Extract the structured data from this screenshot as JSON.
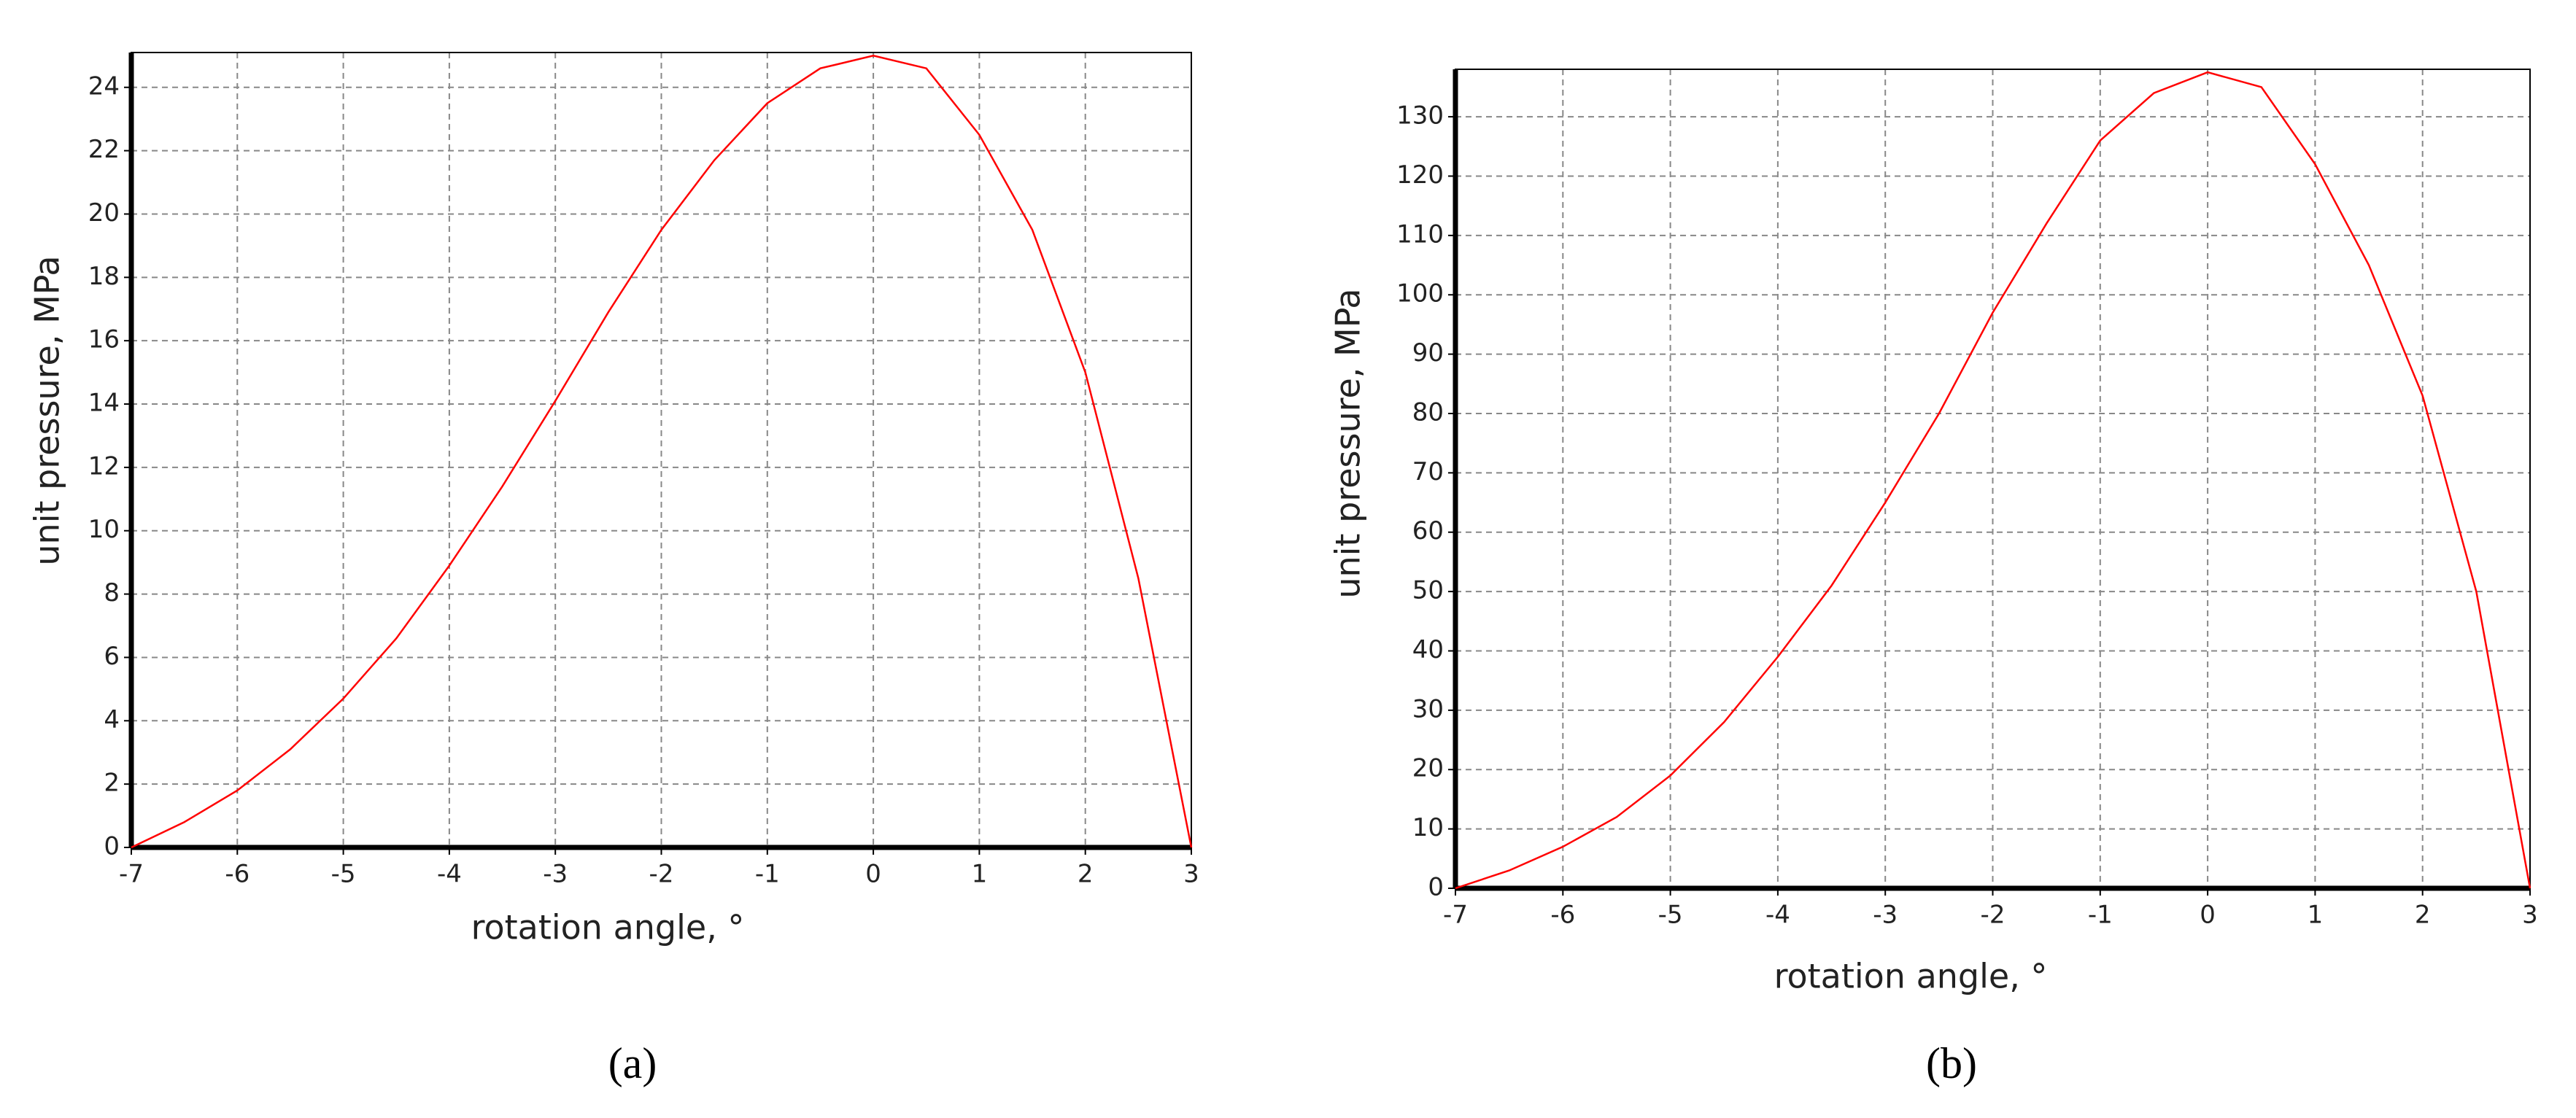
{
  "chart_data": [
    {
      "type": "line",
      "caption": "(a)",
      "xlabel": "rotation angle, °",
      "ylabel": "unit pressure, MPa",
      "x": [
        -7,
        -6.5,
        -6,
        -5.5,
        -5,
        -4.5,
        -4,
        -3.5,
        -3,
        -2.5,
        -2,
        -1.5,
        -1,
        -0.5,
        0,
        0.5,
        1,
        1.5,
        2,
        2.5,
        3
      ],
      "values": [
        0,
        0.8,
        1.8,
        3.1,
        4.7,
        6.6,
        8.9,
        11.4,
        14.1,
        16.9,
        19.5,
        21.7,
        23.5,
        24.6,
        25,
        24.6,
        22.5,
        19.5,
        15,
        8.5,
        0
      ],
      "color": "#ff0000",
      "grid": true,
      "xlim": [
        -7,
        3
      ],
      "xticks": [
        -7,
        -6,
        -5,
        -4,
        -3,
        -2,
        -1,
        0,
        1,
        2,
        3
      ],
      "ylim": [
        0,
        25.1
      ],
      "yticks": [
        0,
        2,
        4,
        6,
        8,
        10,
        12,
        14,
        16,
        18,
        20,
        22,
        24
      ]
    },
    {
      "type": "line",
      "caption": "(b)",
      "xlabel": "rotation angle, °",
      "ylabel": "unit pressure, MPa",
      "x": [
        -7,
        -6.5,
        -6,
        -5.5,
        -5,
        -4.5,
        -4,
        -3.5,
        -3,
        -2.5,
        -2,
        -1.5,
        -1,
        -0.5,
        0,
        0.5,
        1,
        1.5,
        2,
        2.5,
        3
      ],
      "values": [
        0,
        3,
        7,
        12,
        19,
        28,
        39,
        51,
        65,
        80,
        97,
        112,
        126,
        134,
        137.5,
        135,
        122,
        105,
        83,
        50,
        0
      ],
      "color": "#ff0000",
      "grid": true,
      "xlim": [
        -7,
        3
      ],
      "xticks": [
        -7,
        -6,
        -5,
        -4,
        -3,
        -2,
        -1,
        0,
        1,
        2,
        3
      ],
      "ylim": [
        0,
        138
      ],
      "yticks": [
        0,
        10,
        20,
        30,
        40,
        50,
        60,
        70,
        80,
        90,
        100,
        110,
        120,
        130
      ]
    }
  ]
}
